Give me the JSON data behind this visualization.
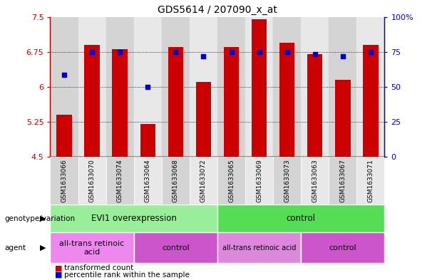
{
  "title": "GDS5614 / 207090_x_at",
  "samples": [
    "GSM1633066",
    "GSM1633070",
    "GSM1633074",
    "GSM1633064",
    "GSM1633068",
    "GSM1633072",
    "GSM1633065",
    "GSM1633069",
    "GSM1633073",
    "GSM1633063",
    "GSM1633067",
    "GSM1633071"
  ],
  "bar_values": [
    5.4,
    6.9,
    6.8,
    5.2,
    6.85,
    6.1,
    6.85,
    7.45,
    6.95,
    6.7,
    6.15,
    6.9
  ],
  "dot_values": [
    6.25,
    6.75,
    6.75,
    6.0,
    6.75,
    6.65,
    6.75,
    6.75,
    6.75,
    6.7,
    6.65,
    6.75
  ],
  "bar_bottom": 4.5,
  "ylim": [
    4.5,
    7.5
  ],
  "yticks_left": [
    4.5,
    5.25,
    6.0,
    6.75,
    7.5
  ],
  "yticks_right": [
    0,
    25,
    50,
    75,
    100
  ],
  "ytick_labels_left": [
    "4.5",
    "5.25",
    "6",
    "6.75",
    "7.5"
  ],
  "ytick_labels_right": [
    "0",
    "25",
    "50",
    "75",
    "100%"
  ],
  "bar_color": "#cc0000",
  "dot_color": "#0000cc",
  "grid_color": "#000000",
  "col_bg_even": "#d4d4d4",
  "col_bg_odd": "#e8e8e8",
  "plot_bg": "#ffffff",
  "genotype_groups": [
    {
      "label": "EVI1 overexpression",
      "start": 0,
      "end": 6,
      "color": "#99ee99"
    },
    {
      "label": "control",
      "start": 6,
      "end": 12,
      "color": "#55dd55"
    }
  ],
  "agent_groups": [
    {
      "label": "all-trans retinoic\nacid",
      "start": 0,
      "end": 3,
      "color": "#ee88ee"
    },
    {
      "label": "control",
      "start": 3,
      "end": 6,
      "color": "#cc55cc"
    },
    {
      "label": "all-trans retinoic acid",
      "start": 6,
      "end": 9,
      "color": "#dd88dd"
    },
    {
      "label": "control",
      "start": 9,
      "end": 12,
      "color": "#cc55cc"
    }
  ],
  "legend_bar_label": "transformed count",
  "legend_dot_label": "percentile rank within the sample",
  "row_label_genotype": "genotype/variation",
  "row_label_agent": "agent",
  "left_axis_color": "#cc0000",
  "right_axis_color": "#0000cc",
  "bar_width": 0.55
}
